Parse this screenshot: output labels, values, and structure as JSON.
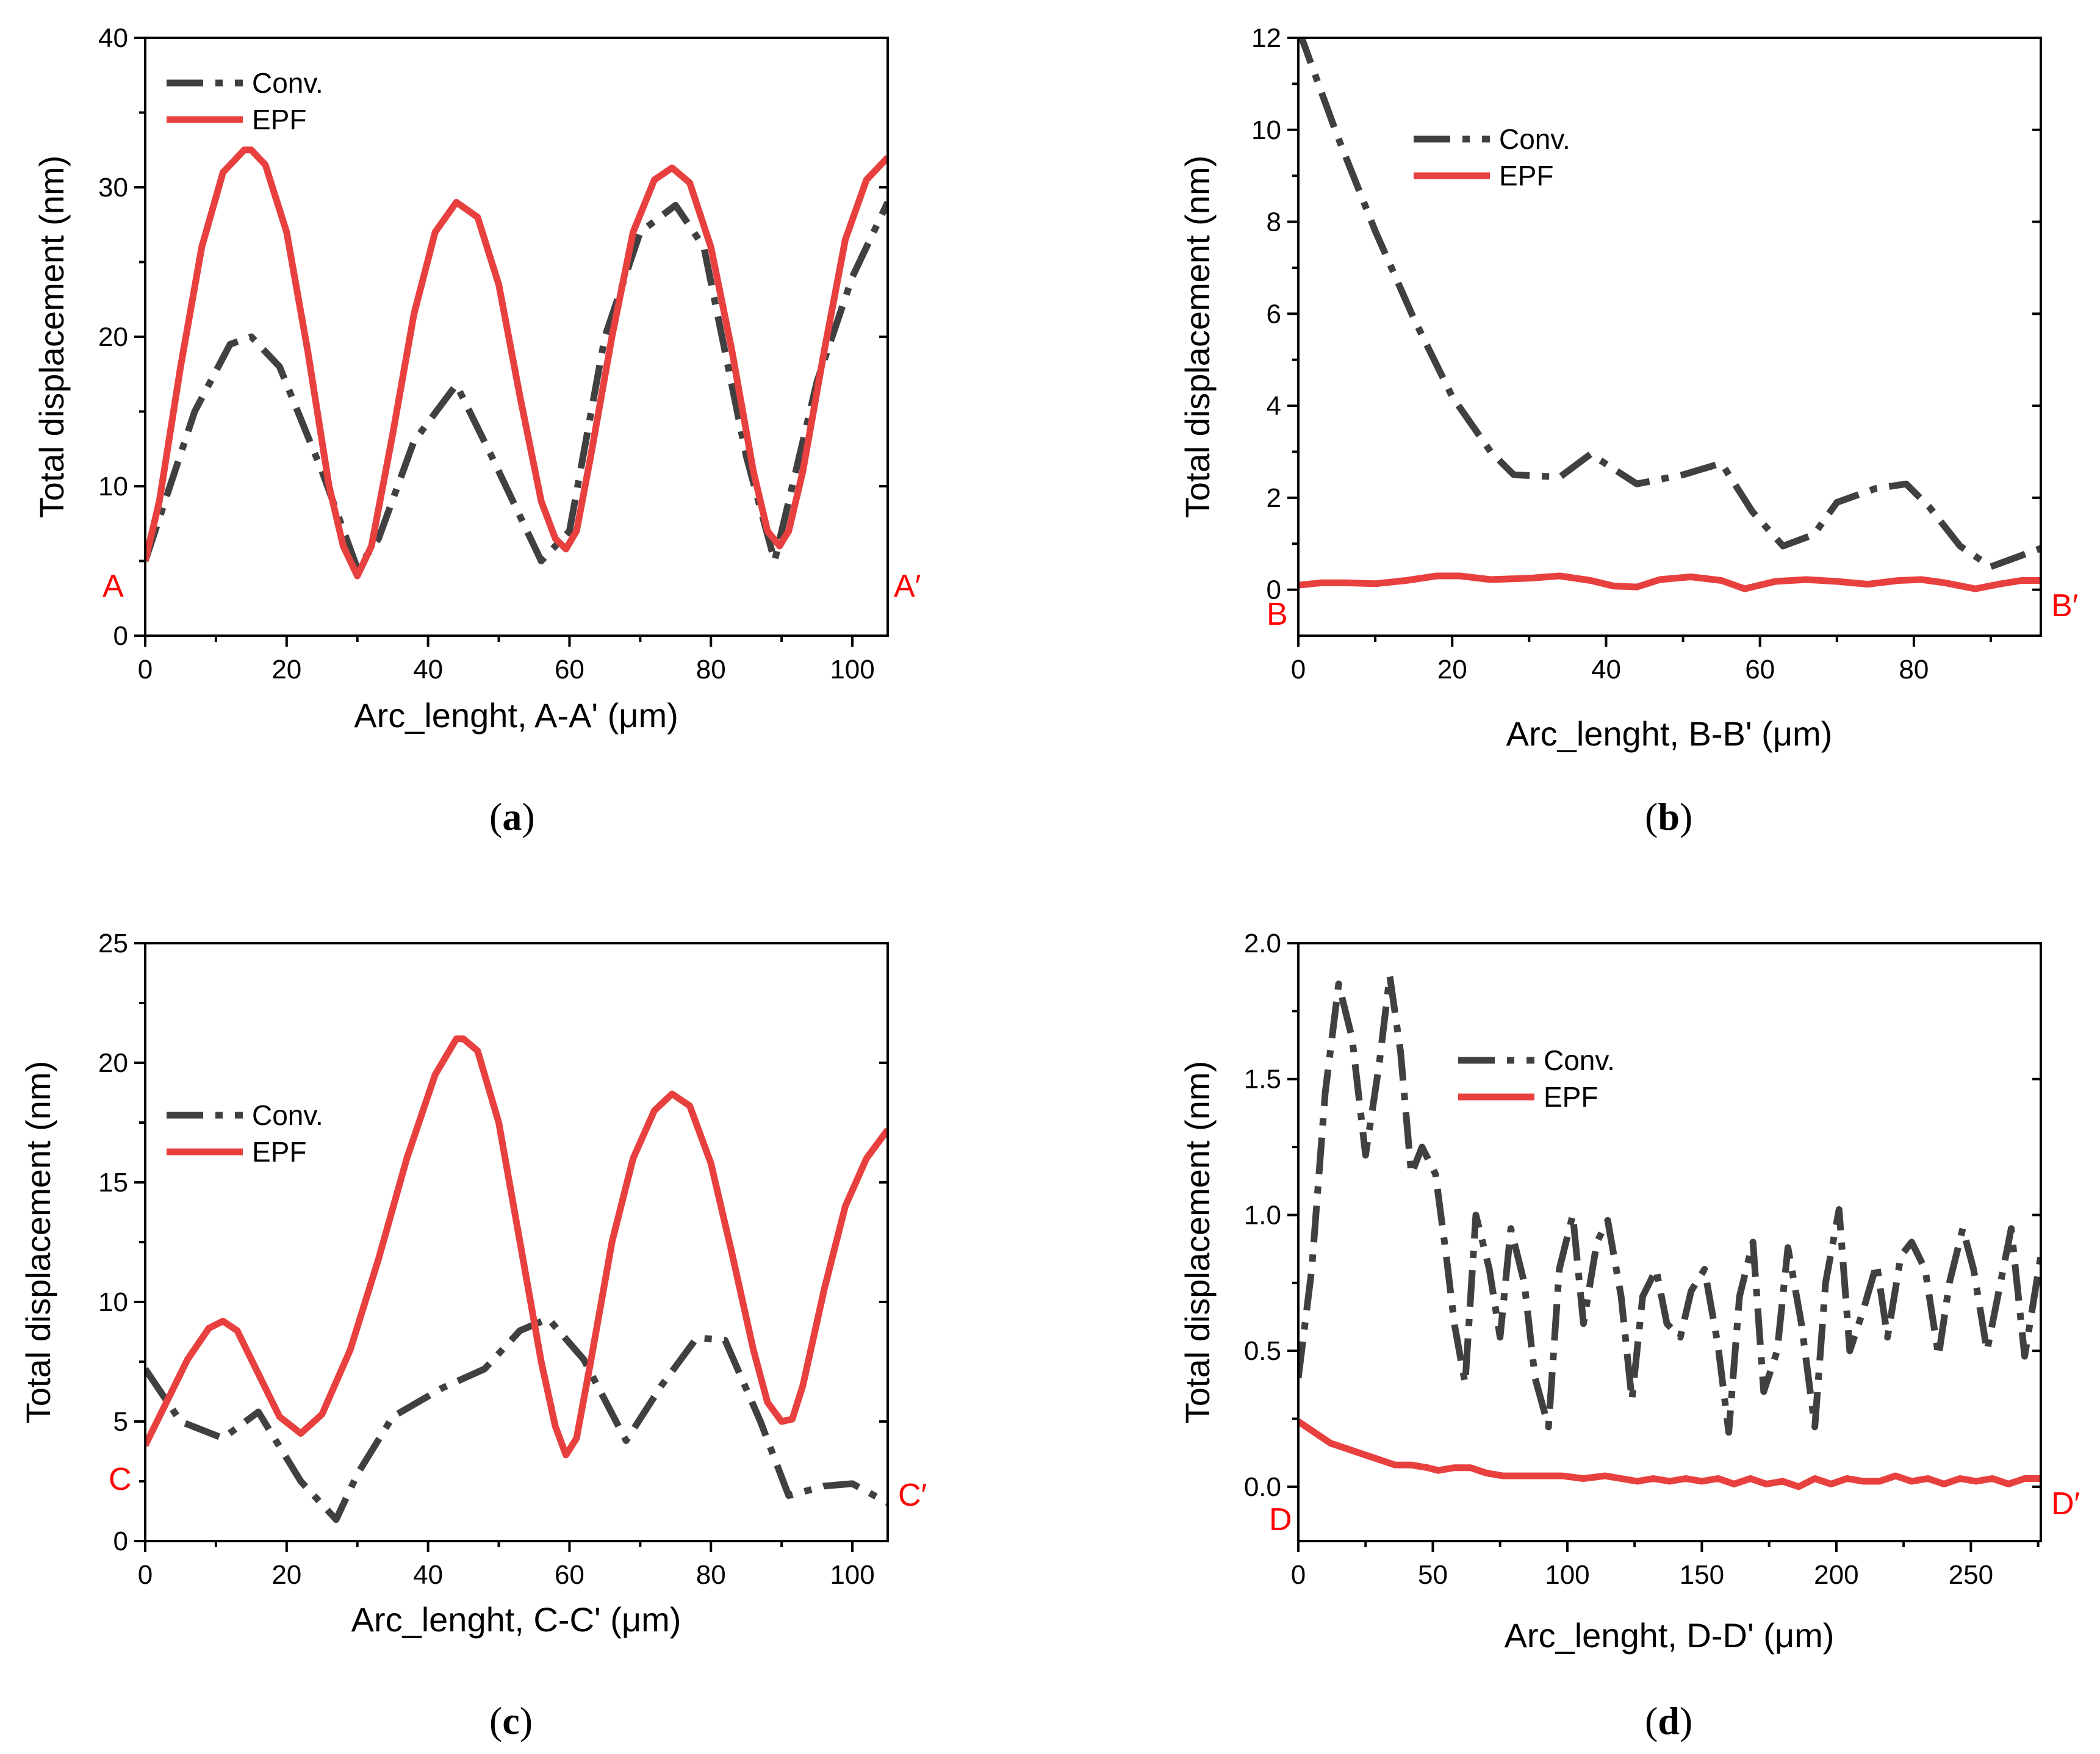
{
  "colors": {
    "conv": "#404040",
    "epf": "#e8403f",
    "marker": "#ff0000",
    "axis": "#000000"
  },
  "chart_data": [
    {
      "type": "line",
      "caption_letter": "a",
      "xlabel": "Arc_lenght, A-A' (μm)",
      "ylabel": "Total displacement (nm)",
      "xlim": [
        0,
        105
      ],
      "ylim": [
        0,
        40
      ],
      "xticks": [
        0,
        20,
        40,
        60,
        80,
        100
      ],
      "yticks": [
        0,
        10,
        20,
        30,
        40
      ],
      "ytick_labels": [
        "0",
        "10",
        "20",
        "30",
        "40"
      ],
      "legend": {
        "position": "top-left",
        "entries": [
          "Conv.",
          "EPF"
        ]
      },
      "start_marker": "A",
      "end_marker": "A′",
      "series": [
        {
          "name": "Conv.",
          "style": "dash-dot",
          "x": [
            0,
            7,
            12,
            15,
            19,
            25,
            30,
            33,
            38,
            44,
            49,
            56,
            60,
            65,
            70,
            75,
            79,
            85,
            89,
            95,
            100,
            105
          ],
          "y": [
            5,
            15,
            19.5,
            20,
            18,
            11,
            4.5,
            6.5,
            13,
            16.8,
            12,
            5,
            7,
            20,
            27,
            28.8,
            26,
            12,
            5,
            17,
            24,
            29
          ]
        },
        {
          "name": "EPF",
          "style": "solid",
          "x": [
            0,
            2,
            5,
            8,
            11,
            14,
            15,
            17,
            20,
            23,
            26,
            28,
            30,
            32,
            35,
            38,
            41,
            44,
            47,
            50,
            53,
            56,
            58,
            59.5,
            61,
            63,
            66,
            69,
            72,
            74.5,
            77,
            80,
            83,
            86,
            88,
            89.7,
            91,
            93,
            96,
            99,
            102,
            105
          ],
          "y": [
            5,
            9,
            18,
            26,
            31,
            32.5,
            32.5,
            31.5,
            27,
            19,
            10,
            6,
            4,
            6,
            13.5,
            21.5,
            27,
            29,
            28,
            23.5,
            16,
            9,
            6.5,
            5.8,
            7,
            12,
            20,
            27,
            30.5,
            31.3,
            30.3,
            26,
            19,
            11,
            7,
            6,
            7,
            11,
            19,
            26.5,
            30.5,
            32
          ]
        }
      ]
    },
    {
      "type": "line",
      "caption_letter": "b",
      "xlabel": "Arc_lenght, B-B' (μm)",
      "ylabel": "Total displacement (nm)",
      "xlim": [
        0,
        96.5
      ],
      "ylim": [
        -1,
        12
      ],
      "xticks": [
        0,
        20,
        40,
        60,
        80
      ],
      "yticks": [
        0,
        2,
        4,
        6,
        8,
        10,
        12
      ],
      "ytick_labels": [
        "0",
        "2",
        "4",
        "6",
        "8",
        "10",
        "12"
      ],
      "legend": {
        "position": "top-center",
        "entries": [
          "Conv.",
          "EPF"
        ]
      },
      "start_marker": "B",
      "end_marker": "B′",
      "series": [
        {
          "name": "Conv.",
          "style": "dash-dot",
          "x": [
            0,
            5,
            10,
            15,
            20,
            25,
            28,
            34,
            38,
            44,
            50,
            55,
            59,
            63,
            67,
            70,
            75,
            79,
            82,
            86,
            90,
            96.5
          ],
          "y": [
            12.2,
            9.9,
            7.8,
            5.9,
            4.2,
            3.0,
            2.5,
            2.45,
            2.95,
            2.3,
            2.5,
            2.75,
            1.7,
            0.95,
            1.2,
            1.9,
            2.2,
            2.3,
            1.8,
            0.95,
            0.5,
            0.9
          ]
        },
        {
          "name": "EPF",
          "style": "solid",
          "x": [
            0,
            3,
            6,
            10,
            14,
            18,
            21,
            25,
            30,
            34,
            38,
            41,
            44,
            47,
            51,
            55,
            58,
            62,
            66,
            70,
            74,
            78,
            81,
            84,
            88,
            91,
            94,
            96.5
          ],
          "y": [
            0.1,
            0.15,
            0.15,
            0.13,
            0.2,
            0.3,
            0.3,
            0.22,
            0.25,
            0.3,
            0.2,
            0.08,
            0.06,
            0.22,
            0.28,
            0.2,
            0.02,
            0.18,
            0.22,
            0.18,
            0.12,
            0.2,
            0.22,
            0.15,
            0.02,
            0.12,
            0.2,
            0.2
          ]
        }
      ]
    },
    {
      "type": "line",
      "caption_letter": "c",
      "xlabel": "Arc_lenght, C-C' (μm)",
      "ylabel": "Total displacement (nm)",
      "xlim": [
        0,
        105
      ],
      "ylim": [
        0,
        25
      ],
      "xticks": [
        0,
        20,
        40,
        60,
        80,
        100
      ],
      "yticks": [
        0,
        5,
        10,
        15,
        20,
        25
      ],
      "ytick_labels": [
        "0",
        "5",
        "10",
        "15",
        "20",
        "25"
      ],
      "legend": {
        "position": "middle-left",
        "entries": [
          "Conv.",
          "EPF"
        ]
      },
      "start_marker": "C",
      "end_marker": "C′",
      "series": [
        {
          "name": "Conv.",
          "style": "dash-dot",
          "x": [
            0,
            5,
            11,
            16,
            22,
            27,
            30,
            35,
            42,
            48,
            53,
            57,
            62,
            68,
            73,
            78,
            82,
            87,
            91,
            96,
            100,
            105
          ],
          "y": [
            7.2,
            5,
            4.3,
            5.4,
            2.5,
            0.9,
            2.8,
            5.2,
            6.4,
            7.2,
            8.8,
            9.3,
            7.6,
            4.2,
            6.5,
            8.5,
            8.4,
            5,
            1.9,
            2.3,
            2.4,
            1.6
          ]
        },
        {
          "name": "EPF",
          "style": "solid",
          "x": [
            0,
            3,
            6,
            9,
            11,
            13,
            16,
            19,
            22,
            25,
            29,
            33,
            37,
            41,
            44,
            45,
            47,
            50,
            53,
            56,
            58,
            59.5,
            61,
            63,
            66,
            69,
            72,
            74.5,
            77,
            80,
            83,
            86,
            88,
            90,
            91.5,
            93,
            96,
            99,
            102,
            105
          ],
          "y": [
            4,
            5.8,
            7.6,
            8.9,
            9.2,
            8.8,
            7,
            5.2,
            4.5,
            5.3,
            8,
            11.8,
            16,
            19.5,
            21,
            21,
            20.5,
            17.5,
            12.5,
            7.5,
            4.8,
            3.6,
            4.3,
            7.5,
            12.5,
            16,
            18,
            18.7,
            18.2,
            15.8,
            12,
            8,
            5.8,
            5,
            5.1,
            6.5,
            10.5,
            14,
            16,
            17.2
          ]
        }
      ]
    },
    {
      "type": "line",
      "caption_letter": "d",
      "xlabel": "Arc_lenght, D-D' (μm)",
      "ylabel": "Total displacement (nm)",
      "xlim": [
        0,
        276
      ],
      "ylim": [
        -0.2,
        2.0
      ],
      "xticks": [
        0,
        50,
        100,
        150,
        200,
        250
      ],
      "yticks": [
        0,
        0.5,
        1.0,
        1.5,
        2.0
      ],
      "ytick_labels": [
        "0.0",
        "0.5",
        "1.0",
        "1.5",
        "2.0"
      ],
      "legend": {
        "position": "top-center",
        "entries": [
          "Conv.",
          "EPF"
        ]
      },
      "start_marker": "D",
      "end_marker": "D′",
      "series": [
        {
          "name": "Conv.",
          "style": "dash-dot",
          "x": [
            0,
            5,
            10,
            15,
            20,
            25,
            30,
            34,
            38,
            42,
            46,
            51,
            55,
            58,
            62,
            66,
            71,
            75,
            79,
            84,
            88,
            93,
            97,
            102,
            106,
            111,
            115,
            120,
            124,
            128,
            133,
            137,
            142,
            146,
            151,
            156,
            160,
            164,
            169,
            173,
            178,
            182,
            187,
            192,
            196,
            201,
            205,
            210,
            215,
            219,
            224,
            228,
            233,
            238,
            242,
            247,
            251,
            256,
            261,
            265,
            270,
            276
          ],
          "y": [
            0.4,
            0.8,
            1.45,
            1.85,
            1.65,
            1.22,
            1.55,
            1.88,
            1.6,
            1.15,
            1.25,
            1.15,
            0.85,
            0.6,
            0.38,
            1.0,
            0.8,
            0.55,
            0.95,
            0.75,
            0.4,
            0.22,
            0.8,
            1.0,
            0.6,
            0.9,
            0.98,
            0.7,
            0.32,
            0.7,
            0.8,
            0.6,
            0.55,
            0.72,
            0.8,
            0.52,
            0.2,
            0.7,
            0.9,
            0.35,
            0.5,
            0.88,
            0.6,
            0.22,
            0.75,
            1.02,
            0.5,
            0.65,
            0.82,
            0.55,
            0.85,
            0.9,
            0.8,
            0.48,
            0.75,
            0.95,
            0.8,
            0.5,
            0.75,
            0.95,
            0.48,
            0.85
          ]
        },
        {
          "name": "EPF",
          "style": "solid",
          "x": [
            0,
            6,
            12,
            18,
            24,
            30,
            36,
            42,
            48,
            52,
            58,
            64,
            70,
            76,
            82,
            90,
            98,
            106,
            114,
            120,
            126,
            132,
            138,
            144,
            150,
            156,
            162,
            168,
            174,
            180,
            186,
            192,
            198,
            204,
            210,
            216,
            222,
            228,
            234,
            240,
            246,
            252,
            258,
            264,
            270,
            276
          ],
          "y": [
            0.24,
            0.2,
            0.16,
            0.14,
            0.12,
            0.1,
            0.08,
            0.08,
            0.07,
            0.06,
            0.07,
            0.07,
            0.05,
            0.04,
            0.04,
            0.04,
            0.04,
            0.03,
            0.04,
            0.03,
            0.02,
            0.03,
            0.02,
            0.03,
            0.02,
            0.03,
            0.01,
            0.03,
            0.01,
            0.02,
            0.0,
            0.03,
            0.01,
            0.03,
            0.02,
            0.02,
            0.04,
            0.02,
            0.03,
            0.01,
            0.03,
            0.02,
            0.03,
            0.01,
            0.03,
            0.03
          ]
        }
      ]
    }
  ]
}
